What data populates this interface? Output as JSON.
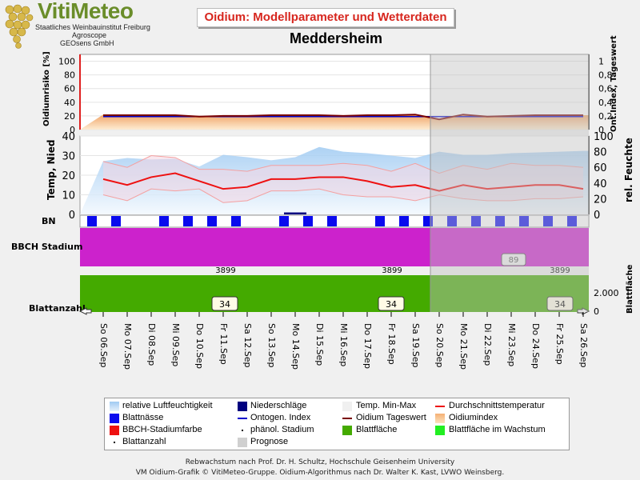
{
  "logo": {
    "name": "VitiMeteo",
    "lines": [
      "Staatliches Weinbauinstitut Freiburg",
      "Agroscope",
      "GEOsens GmbH"
    ]
  },
  "title": "Oidium: Modellparameter und Wetterdaten",
  "station": "Meddersheim",
  "dates": [
    "So 06.Sep",
    "Mo 07.Sep",
    "Di 08.Sep",
    "Mi 09.Sep",
    "Do 10.Sep",
    "Fr 11.Sep",
    "Sa 12.Sep",
    "So 13.Sep",
    "Mo 14.Sep",
    "Di 15.Sep",
    "Mi 16.Sep",
    "Do 17.Sep",
    "Fr 18.Sep",
    "Sa 19.Sep",
    "So 20.Sep",
    "Mo 21.Sep",
    "Di 22.Sep",
    "Mi 23.Sep",
    "Do 24.Sep",
    "Fr 25.Sep",
    "Sa 26.Sep"
  ],
  "forecast_start": "So 20.Sep",
  "colors": {
    "humidity": "#9fcaf2",
    "precip": "#00007f",
    "temp_range": "#f4d6e1",
    "avg_temp": "#ee1111",
    "leaf_wetness": "#0a0aee",
    "ontog_index": "#0000cc",
    "oidium_daily": "#7a0000",
    "oidium_index": "#f5b074",
    "bbch": "#cc22cc",
    "leaf_area": "#44aa00",
    "forecast": "#c0c0c0"
  },
  "chart_data": [
    {
      "type": "area",
      "panel": "oidium",
      "ylabel": "Oidiumrisiko [%]",
      "ylabel2": "Ont.Index, Tageswert",
      "ylim": [
        0,
        110
      ],
      "yticks": [
        "0",
        "20",
        "40",
        "60",
        "80",
        "100"
      ],
      "y2lim": [
        0,
        1.1
      ],
      "y2ticks": [
        "0",
        "0,2",
        "0,4",
        "0,6",
        "0,8",
        "1"
      ],
      "series": [
        {
          "name": "Oidiumindex",
          "values": [
            22,
            22,
            22,
            21,
            20,
            20,
            20,
            22,
            22,
            22,
            21,
            21,
            22,
            22,
            14,
            21,
            19,
            20,
            21,
            21,
            21
          ]
        },
        {
          "name": "Oidium Tageswert",
          "values": [
            0.21,
            0.21,
            0.21,
            0.21,
            0.19,
            0.2,
            0.2,
            0.21,
            0.21,
            0.21,
            0.2,
            0.21,
            0.21,
            0.22,
            0.15,
            0.22,
            0.19,
            0.2,
            0.21,
            0.21,
            0.21
          ]
        },
        {
          "name": "Ontogen. Index",
          "values": [
            0.19,
            0.19,
            0.19,
            0.19,
            0.19,
            0.19,
            0.19,
            0.19,
            0.19,
            0.19,
            0.19,
            0.19,
            0.19,
            0.19,
            0.19,
            0.19,
            0.19,
            0.19,
            0.19,
            0.19,
            0.19
          ]
        }
      ]
    },
    {
      "type": "line",
      "panel": "weather",
      "ylabel": "Temp, Nied",
      "ylabel2": "rel. Feuchte",
      "ylim": [
        0,
        40
      ],
      "yticks": [
        "0",
        "10",
        "20",
        "30",
        "40"
      ],
      "y2lim": [
        0,
        100
      ],
      "y2ticks": [
        "0",
        "20",
        "40",
        "60",
        "80",
        "100"
      ],
      "series": [
        {
          "name": "relative Luftfeuchtigkeit",
          "values": [
            68,
            72,
            70,
            71,
            61,
            76,
            73,
            69,
            73,
            86,
            80,
            78,
            75,
            72,
            80,
            76,
            76,
            78,
            79,
            80,
            81
          ]
        },
        {
          "name": "Temp. Max",
          "values": [
            27,
            24,
            30,
            29,
            23,
            23,
            22,
            25,
            25,
            25,
            26,
            25,
            22,
            26,
            21,
            25,
            23,
            26,
            25,
            25,
            24
          ]
        },
        {
          "name": "Temp. Min",
          "values": [
            10,
            7,
            13,
            12,
            13,
            6,
            7,
            12,
            12,
            13,
            10,
            9,
            9,
            7,
            10,
            8,
            7,
            7,
            8,
            8,
            9
          ]
        },
        {
          "name": "Durchschnittstemperatur",
          "values": [
            18,
            15,
            19,
            21,
            17,
            13,
            14,
            18,
            18,
            19,
            19,
            17,
            14,
            15,
            12,
            15,
            13,
            14,
            15,
            15,
            13
          ]
        },
        {
          "name": "Niederschläge",
          "values": [
            0,
            0,
            0,
            0,
            0,
            0,
            0,
            0,
            1,
            0,
            0,
            0,
            0,
            0,
            0,
            0,
            0,
            0,
            0,
            0,
            0
          ]
        }
      ]
    },
    {
      "type": "table",
      "panel": "blattnaesse",
      "label": "BN",
      "series": [
        {
          "name": "Blattnässe",
          "values": [
            1,
            1,
            0,
            1,
            1,
            1,
            1,
            0,
            1,
            1,
            1,
            0,
            1,
            1,
            1,
            1,
            1,
            1,
            1,
            1,
            1
          ]
        }
      ]
    },
    {
      "type": "area",
      "panel": "bbch",
      "label": "BBCH Stadium",
      "series": [
        {
          "name": "BBCH-Stadiumfarbe",
          "values": [
            89,
            89,
            89,
            89,
            89,
            89,
            89,
            89,
            89,
            89,
            89,
            89,
            89,
            89,
            89,
            89,
            89,
            89,
            89,
            89,
            89
          ]
        }
      ],
      "data_labels": [
        "3899",
        "3899",
        "3899",
        "89"
      ]
    },
    {
      "type": "area",
      "panel": "leaf",
      "label": "Blattanzahl",
      "ylabel2": "Blattfläche",
      "y2ticks": [
        "0",
        "2.000"
      ],
      "series": [
        {
          "name": "Blattfläche",
          "values": [
            2600,
            2600,
            2600,
            2600,
            2600,
            2600,
            2600,
            2600,
            2600,
            2600,
            2600,
            2600,
            2600,
            2600,
            2600,
            2600,
            2600,
            2600,
            2600,
            2600,
            2600
          ]
        }
      ],
      "leaf_counts": [
        "34",
        "34",
        "34"
      ]
    }
  ],
  "legend": [
    {
      "label": "relative Luftfeuchtigkeit",
      "icon": "humidity-swatch"
    },
    {
      "label": "Niederschläge",
      "icon": "precip-swatch"
    },
    {
      "label": "Temp. Min-Max",
      "icon": "temp-range-swatch"
    },
    {
      "label": "Durchschnittstemperatur",
      "icon": "avg-temp-line"
    },
    {
      "label": "Blattnässe",
      "icon": "leaf-wetness-swatch"
    },
    {
      "label": "Ontogen. Index",
      "icon": "ontog-line"
    },
    {
      "label": "Oidium Tageswert",
      "icon": "oidium-daily-line"
    },
    {
      "label": "Oidiumindex",
      "icon": "oidium-index-swatch"
    },
    {
      "label": "BBCH-Stadiumfarbe",
      "icon": "bbch-swatch"
    },
    {
      "label": "phänol. Stadium",
      "icon": "pheno-dot"
    },
    {
      "label": "Blattfläche",
      "icon": "leaf-area-swatch"
    },
    {
      "label": "Blattfläche im Wachstum",
      "icon": "leaf-growth-swatch"
    },
    {
      "label": "Blattanzahl",
      "icon": "leaf-count-dot"
    },
    {
      "label": "Prognose",
      "icon": "forecast-swatch"
    }
  ],
  "footer": [
    "Rebwachstum nach Prof. Dr. H. Schultz, Hochschule Geisenheim University",
    "VM Oidium-Grafik © VitiMeteo-Gruppe. Oidium-Algorithmus nach Dr. Walter K. Kast, LVWO Weinsberg."
  ]
}
